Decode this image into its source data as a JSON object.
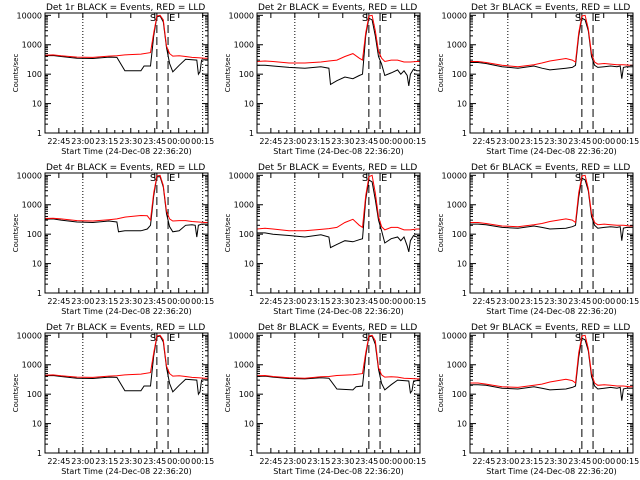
{
  "figure": {
    "xlabel": "Start Time (24-Dec-08 22:36:20)",
    "ylabel": "Counts/sec",
    "ylim": [
      1,
      12000
    ],
    "yscale": "log",
    "y_ticks": [
      1,
      10,
      100,
      1000,
      10000
    ],
    "y_tick_labels": [
      "1",
      "10",
      "100",
      "1000",
      "10000"
    ],
    "x_ticks": [
      "22:45",
      "23:00",
      "23:15",
      "23:30",
      "23:45",
      "00:00",
      "00:15"
    ],
    "x_tick_offsets_min": [
      8.67,
      23.67,
      38.67,
      53.67,
      68.67,
      83.67,
      98.67
    ],
    "xlim_min": [
      0,
      102
    ],
    "dotted_line_offsets_min": [
      23.67,
      98.67
    ],
    "interval_markers": [
      {
        "label": "S",
        "offset_min": 70
      },
      {
        "label": "E",
        "offset_min": 77
      }
    ],
    "colors": {
      "events": "#000000",
      "lld": "#ff0000",
      "axes": "#000000"
    }
  },
  "chart_data": [
    {
      "type": "line",
      "title": "Det 1r BLACK = Events, RED = LLD",
      "x_unit": "minutes since 22:36:20",
      "series": [
        {
          "name": "Events",
          "x": [
            0,
            5,
            10,
            20,
            30,
            40,
            45,
            50,
            60,
            62,
            66,
            68,
            70,
            72,
            74,
            76,
            78,
            80,
            84,
            88,
            92,
            95,
            96,
            97,
            98,
            100,
            102
          ],
          "y": [
            420,
            430,
            400,
            350,
            340,
            380,
            370,
            130,
            130,
            190,
            190,
            2000,
            9000,
            9500,
            6000,
            800,
            230,
            120,
            200,
            320,
            310,
            300,
            100,
            120,
            300,
            310,
            310
          ]
        },
        {
          "name": "LLD",
          "x": [
            0,
            5,
            10,
            20,
            30,
            40,
            45,
            50,
            60,
            66,
            68,
            70,
            72,
            74,
            76,
            78,
            80,
            84,
            88,
            92,
            96,
            100,
            102
          ],
          "y": [
            440,
            450,
            420,
            380,
            370,
            410,
            420,
            450,
            480,
            540,
            2500,
            9500,
            10000,
            7000,
            900,
            500,
            410,
            420,
            400,
            370,
            360,
            350,
            350
          ]
        }
      ]
    },
    {
      "type": "line",
      "title": "Det 2r BLACK = Events, RED = LLD",
      "x_unit": "minutes since 22:36:20",
      "series": [
        {
          "name": "Events",
          "x": [
            0,
            5,
            10,
            20,
            30,
            40,
            45,
            46,
            50,
            55,
            60,
            64,
            66,
            68,
            70,
            72,
            74,
            76,
            78,
            80,
            84,
            88,
            90,
            92,
            94,
            95,
            96,
            98,
            100,
            102
          ],
          "y": [
            200,
            200,
            190,
            170,
            160,
            180,
            160,
            45,
            60,
            80,
            70,
            90,
            100,
            2000,
            8000,
            7000,
            2000,
            400,
            220,
            90,
            110,
            140,
            100,
            130,
            90,
            40,
            100,
            150,
            130,
            130
          ]
        },
        {
          "name": "LLD",
          "x": [
            0,
            5,
            10,
            20,
            30,
            40,
            45,
            50,
            55,
            60,
            64,
            66,
            68,
            70,
            72,
            74,
            76,
            78,
            80,
            84,
            88,
            92,
            96,
            100,
            102
          ],
          "y": [
            270,
            280,
            270,
            240,
            240,
            260,
            280,
            300,
            400,
            500,
            350,
            300,
            2500,
            9500,
            10000,
            3000,
            600,
            350,
            270,
            300,
            300,
            260,
            260,
            270,
            270
          ]
        }
      ]
    },
    {
      "type": "line",
      "title": "Det 3r BLACK = Events, RED = LLD",
      "x_unit": "minutes since 22:36:20",
      "series": [
        {
          "name": "Events",
          "x": [
            0,
            5,
            10,
            20,
            30,
            40,
            45,
            50,
            60,
            64,
            66,
            68,
            70,
            72,
            74,
            76,
            78,
            80,
            84,
            88,
            92,
            94,
            95,
            96,
            98,
            100,
            102
          ],
          "y": [
            250,
            250,
            230,
            180,
            160,
            190,
            160,
            140,
            160,
            170,
            200,
            2000,
            8000,
            7000,
            3000,
            400,
            200,
            170,
            180,
            190,
            180,
            190,
            70,
            170,
            180,
            180,
            180
          ]
        },
        {
          "name": "LLD",
          "x": [
            0,
            5,
            10,
            20,
            30,
            40,
            45,
            50,
            60,
            64,
            66,
            68,
            70,
            72,
            74,
            76,
            78,
            80,
            84,
            88,
            92,
            96,
            100,
            102
          ],
          "y": [
            270,
            270,
            250,
            200,
            180,
            210,
            240,
            280,
            340,
            300,
            260,
            2500,
            9500,
            10000,
            3500,
            500,
            260,
            220,
            230,
            220,
            210,
            210,
            200,
            200
          ]
        }
      ]
    },
    {
      "type": "line",
      "title": "Det 4r BLACK = Events, RED = LLD",
      "x_unit": "minutes since 22:36:20",
      "series": [
        {
          "name": "Events",
          "x": [
            0,
            5,
            10,
            20,
            30,
            40,
            45,
            46,
            50,
            60,
            64,
            66,
            68,
            70,
            72,
            74,
            76,
            78,
            80,
            84,
            88,
            92,
            94,
            95,
            96,
            98,
            100,
            102
          ],
          "y": [
            320,
            330,
            300,
            260,
            250,
            280,
            260,
            120,
            130,
            130,
            150,
            200,
            2000,
            9000,
            9000,
            4000,
            500,
            180,
            120,
            130,
            200,
            210,
            200,
            80,
            200,
            220,
            220,
            220
          ]
        },
        {
          "name": "LLD",
          "x": [
            0,
            5,
            10,
            20,
            30,
            40,
            45,
            50,
            60,
            64,
            66,
            68,
            70,
            72,
            74,
            76,
            78,
            80,
            84,
            88,
            92,
            96,
            100,
            102
          ],
          "y": [
            340,
            350,
            330,
            290,
            280,
            310,
            330,
            380,
            430,
            420,
            300,
            2500,
            9500,
            10000,
            4500,
            600,
            330,
            280,
            290,
            290,
            270,
            260,
            250,
            250
          ]
        }
      ]
    },
    {
      "type": "line",
      "title": "Det 5r BLACK = Events, RED = LLD",
      "x_unit": "minutes since 22:36:20",
      "series": [
        {
          "name": "Events",
          "x": [
            0,
            5,
            10,
            20,
            30,
            40,
            45,
            46,
            50,
            55,
            60,
            64,
            66,
            68,
            70,
            72,
            74,
            76,
            78,
            80,
            84,
            88,
            90,
            92,
            94,
            95,
            96,
            98,
            100,
            102
          ],
          "y": [
            110,
            110,
            100,
            90,
            80,
            95,
            80,
            35,
            45,
            60,
            55,
            65,
            70,
            1500,
            7000,
            6000,
            1500,
            300,
            130,
            50,
            70,
            80,
            60,
            80,
            40,
            25,
            60,
            90,
            80,
            80
          ]
        },
        {
          "name": "LLD",
          "x": [
            0,
            5,
            10,
            20,
            30,
            40,
            45,
            50,
            55,
            60,
            64,
            66,
            68,
            70,
            72,
            74,
            76,
            78,
            80,
            84,
            88,
            92,
            96,
            100,
            102
          ],
          "y": [
            150,
            160,
            150,
            130,
            130,
            145,
            155,
            170,
            250,
            320,
            200,
            170,
            2000,
            9000,
            10000,
            2500,
            400,
            180,
            140,
            170,
            170,
            140,
            140,
            150,
            150
          ]
        }
      ]
    },
    {
      "type": "line",
      "title": "Det 6r BLACK = Events, RED = LLD",
      "x_unit": "minutes since 22:36:20",
      "series": [
        {
          "name": "Events",
          "x": [
            0,
            5,
            10,
            20,
            30,
            40,
            45,
            50,
            60,
            64,
            66,
            68,
            70,
            72,
            74,
            76,
            78,
            80,
            84,
            88,
            92,
            94,
            95,
            96,
            98,
            100,
            102
          ],
          "y": [
            220,
            220,
            210,
            170,
            160,
            190,
            170,
            150,
            160,
            180,
            200,
            1800,
            8000,
            7000,
            3000,
            400,
            200,
            160,
            170,
            180,
            170,
            180,
            60,
            160,
            170,
            170,
            170
          ]
        },
        {
          "name": "LLD",
          "x": [
            0,
            5,
            10,
            20,
            30,
            40,
            45,
            50,
            60,
            64,
            66,
            68,
            70,
            72,
            74,
            76,
            78,
            80,
            84,
            88,
            92,
            96,
            100,
            102
          ],
          "y": [
            250,
            250,
            230,
            190,
            180,
            210,
            230,
            270,
            330,
            300,
            250,
            2500,
            9500,
            10000,
            3500,
            500,
            250,
            210,
            220,
            210,
            200,
            200,
            190,
            190
          ]
        }
      ]
    },
    {
      "type": "line",
      "title": "Det 7r BLACK = Events, RED = LLD",
      "x_unit": "minutes since 22:36:20",
      "series": [
        {
          "name": "Events",
          "x": [
            0,
            5,
            10,
            20,
            30,
            40,
            45,
            50,
            60,
            62,
            66,
            68,
            70,
            72,
            74,
            76,
            78,
            80,
            84,
            88,
            92,
            95,
            96,
            97,
            98,
            100,
            102
          ],
          "y": [
            420,
            430,
            400,
            350,
            340,
            380,
            370,
            130,
            130,
            190,
            190,
            2000,
            9000,
            9500,
            6000,
            800,
            230,
            120,
            200,
            320,
            310,
            300,
            100,
            120,
            300,
            310,
            310
          ]
        },
        {
          "name": "LLD",
          "x": [
            0,
            5,
            10,
            20,
            30,
            40,
            45,
            50,
            60,
            66,
            68,
            70,
            72,
            74,
            76,
            78,
            80,
            84,
            88,
            92,
            96,
            100,
            102
          ],
          "y": [
            440,
            450,
            420,
            380,
            370,
            410,
            420,
            450,
            480,
            540,
            2500,
            9500,
            10000,
            7000,
            900,
            500,
            410,
            420,
            400,
            370,
            360,
            350,
            350
          ]
        }
      ]
    },
    {
      "type": "line",
      "title": "Det 8r BLACK = Events, RED = LLD",
      "x_unit": "minutes since 22:36:20",
      "series": [
        {
          "name": "Events",
          "x": [
            0,
            5,
            10,
            20,
            30,
            40,
            45,
            50,
            60,
            62,
            66,
            68,
            70,
            72,
            74,
            76,
            78,
            80,
            84,
            88,
            92,
            95,
            96,
            97,
            98,
            100,
            102
          ],
          "y": [
            400,
            410,
            380,
            340,
            330,
            360,
            350,
            150,
            140,
            180,
            190,
            2000,
            9000,
            9500,
            5000,
            700,
            230,
            140,
            210,
            300,
            290,
            280,
            110,
            130,
            280,
            290,
            290
          ]
        },
        {
          "name": "LLD",
          "x": [
            0,
            5,
            10,
            20,
            30,
            40,
            45,
            50,
            60,
            66,
            68,
            70,
            72,
            74,
            76,
            78,
            80,
            84,
            88,
            92,
            96,
            100,
            102
          ],
          "y": [
            420,
            430,
            400,
            360,
            350,
            390,
            400,
            430,
            460,
            500,
            2500,
            9500,
            10000,
            6500,
            800,
            450,
            380,
            390,
            380,
            350,
            340,
            330,
            330
          ]
        }
      ]
    },
    {
      "type": "line",
      "title": "Det 9r BLACK = Events, RED = LLD",
      "x_unit": "minutes since 22:36:20",
      "series": [
        {
          "name": "Events",
          "x": [
            0,
            5,
            10,
            20,
            30,
            40,
            45,
            50,
            60,
            64,
            66,
            68,
            70,
            72,
            74,
            76,
            78,
            80,
            84,
            88,
            92,
            94,
            95,
            96,
            98,
            100,
            102
          ],
          "y": [
            210,
            210,
            200,
            160,
            150,
            180,
            160,
            140,
            150,
            170,
            190,
            1800,
            8000,
            7000,
            3000,
            400,
            190,
            150,
            160,
            170,
            160,
            170,
            60,
            150,
            160,
            160,
            160
          ]
        },
        {
          "name": "LLD",
          "x": [
            0,
            5,
            10,
            20,
            30,
            40,
            45,
            50,
            60,
            64,
            66,
            68,
            70,
            72,
            74,
            76,
            78,
            80,
            84,
            88,
            92,
            96,
            100,
            102
          ],
          "y": [
            240,
            240,
            220,
            180,
            170,
            200,
            220,
            260,
            320,
            290,
            240,
            2500,
            9500,
            10000,
            3500,
            500,
            240,
            200,
            210,
            200,
            190,
            190,
            180,
            180
          ]
        }
      ]
    }
  ]
}
